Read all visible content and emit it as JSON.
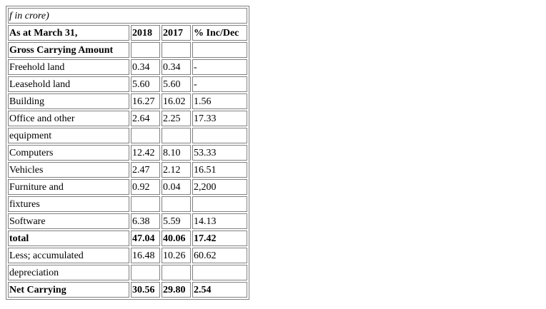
{
  "table": {
    "caption": "f in crore)",
    "header": {
      "label": "As at March 31,",
      "col1": "2018",
      "col2": "2017",
      "col3": "% Inc/Dec"
    },
    "rows": [
      {
        "label": "Gross Carrying Amount",
        "v2018": "",
        "v2017": "",
        "pct": "",
        "bold": true
      },
      {
        "label": "Freehold land",
        "v2018": "0.34",
        "v2017": "0.34",
        "pct": "-",
        "bold": false
      },
      {
        "label": "Leasehold land",
        "v2018": "5.60",
        "v2017": "5.60",
        "pct": "-",
        "bold": false
      },
      {
        "label": "Building",
        "v2018": "16.27",
        "v2017": "16.02",
        "pct": "1.56",
        "bold": false
      },
      {
        "label": "Office and other",
        "v2018": "2.64",
        "v2017": "2.25",
        "pct": "17.33",
        "bold": false
      },
      {
        "label": "equipment",
        "v2018": "",
        "v2017": "",
        "pct": "",
        "bold": false
      },
      {
        "label": "Computers",
        "v2018": "12.42",
        "v2017": "8.10",
        "pct": "53.33",
        "bold": false
      },
      {
        "label": "Vehicles",
        "v2018": "2.47",
        "v2017": "2.12",
        "pct": "16.51",
        "bold": false
      },
      {
        "label": "Furniture and",
        "v2018": "0.92",
        "v2017": "0.04",
        "pct": "2,200",
        "bold": false
      },
      {
        "label": "fixtures",
        "v2018": "",
        "v2017": "",
        "pct": "",
        "bold": false
      },
      {
        "label": "Software",
        "v2018": "6.38",
        "v2017": "5.59",
        "pct": "14.13",
        "bold": false
      },
      {
        "label": "total",
        "v2018": "47.04",
        "v2017": "40.06",
        "pct": "17.42",
        "bold": true
      },
      {
        "label": "Less; accumulated",
        "v2018": "16.48",
        "v2017": "10.26",
        "pct": "60.62",
        "bold": false
      },
      {
        "label": "depreciation",
        "v2018": "",
        "v2017": "",
        "pct": "",
        "bold": false
      },
      {
        "label": "Net Carrying",
        "v2018": "30.56",
        "v2017": "29.80",
        "pct": "2.54",
        "bold": true
      }
    ]
  }
}
